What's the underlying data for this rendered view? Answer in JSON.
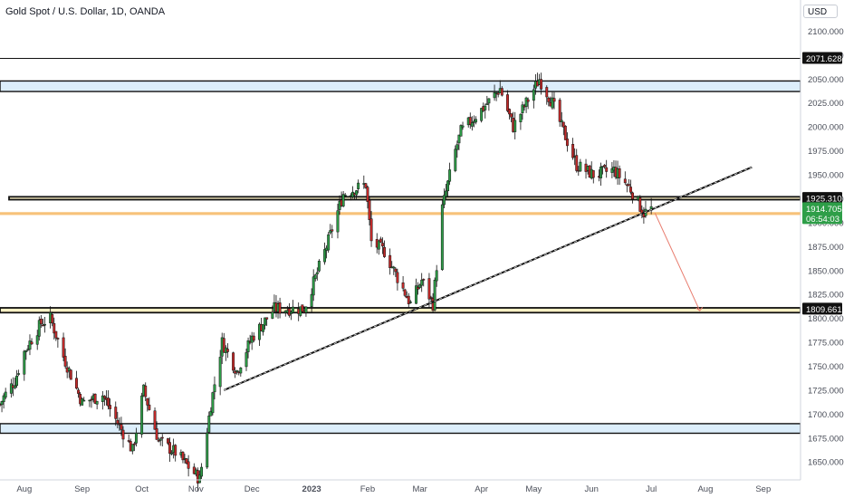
{
  "header": {
    "title": "Gold Spot / U.S. Dollar, 1D, OANDA",
    "currency": "USD"
  },
  "colors": {
    "up": "#2e9e48",
    "down": "#c52a2a",
    "zone_fill": "#dceefb",
    "orange_zone": "#f7c27a",
    "label_bg": "#111111",
    "current_price_bg": "#2e9e48",
    "projection_arrow": "#e87c6e",
    "axis_text": "#4a4e59"
  },
  "chart_data": {
    "type": "candlestick",
    "title": "Gold Spot / U.S. Dollar, 1D, OANDA",
    "xlabel": "",
    "ylabel": "",
    "ylim": [
      1636,
      2108
    ],
    "x_range": [
      "2022-07-19",
      "2023-09-21"
    ],
    "x_tick_labels": [
      {
        "label": "Aug",
        "date": "2022-08-01"
      },
      {
        "label": "Sep",
        "date": "2022-09-01"
      },
      {
        "label": "Oct",
        "date": "2022-10-03"
      },
      {
        "label": "Nov",
        "date": "2022-11-01"
      },
      {
        "label": "Dec",
        "date": "2022-12-01"
      },
      {
        "label": "2023",
        "date": "2023-01-02"
      },
      {
        "label": "Feb",
        "date": "2023-02-01"
      },
      {
        "label": "Mar",
        "date": "2023-03-01"
      },
      {
        "label": "Apr",
        "date": "2023-04-03"
      },
      {
        "label": "May",
        "date": "2023-05-01"
      },
      {
        "label": "Jun",
        "date": "2023-06-01"
      },
      {
        "label": "Jul",
        "date": "2023-07-03"
      },
      {
        "label": "Aug",
        "date": "2023-08-01"
      },
      {
        "label": "Sep",
        "date": "2023-09-01"
      }
    ],
    "y_ticks": [
      1650,
      1675,
      1700,
      1725,
      1750,
      1775,
      1800,
      1825,
      1850,
      1875,
      1900,
      1925,
      1950,
      1975,
      2000,
      2025,
      2050,
      2075,
      2100
    ],
    "y_tick_labels": [
      "1650.000",
      "1675.000",
      "1700.000",
      "1725.000",
      "1750.000",
      "1775.000",
      "1800.000",
      "1825.000",
      "1850.000",
      "1875.000",
      "1900.000",
      "1925.000",
      "1950.000",
      "1975.000",
      "2000.000",
      "2025.000",
      "2050.000",
      "2075.000",
      "2100.000"
    ],
    "price_labels": [
      {
        "value": 2071.628,
        "text": "2071.628",
        "style": "dark"
      },
      {
        "value": 1925.31,
        "text": "1925.310",
        "style": "dark"
      },
      {
        "value": 1914.705,
        "text": "1914.705",
        "style": "current"
      },
      {
        "value": 1809.661,
        "text": "1809.661",
        "style": "dark"
      }
    ],
    "countdown": "06:54:03",
    "horizontal_lines": [
      {
        "value": 2071.628
      }
    ],
    "zones": [
      {
        "from": 2037,
        "to": 2048,
        "style": "blue"
      },
      {
        "from": 1924,
        "to": 1927,
        "style": "yellow"
      },
      {
        "from": 1908,
        "to": 1911,
        "style": "orange"
      },
      {
        "from": 1806,
        "to": 1811,
        "style": "yellow"
      },
      {
        "from": 1680,
        "to": 1690,
        "style": "blue"
      }
    ],
    "trendline": {
      "start": {
        "date": "2022-11-16",
        "value": 1725
      },
      "end": {
        "date": "2023-08-26",
        "value": 1958
      }
    },
    "projection_arrow": {
      "start": {
        "date": "2023-07-05",
        "value": 1910
      },
      "end": {
        "date": "2023-07-29",
        "value": 1808
      }
    },
    "anchor_points": [
      [
        "2022-07-19",
        1710
      ],
      [
        "2022-07-21",
        1718
      ],
      [
        "2022-07-27",
        1735
      ],
      [
        "2022-08-01",
        1765
      ],
      [
        "2022-08-10",
        1795
      ],
      [
        "2022-08-15",
        1800
      ],
      [
        "2022-08-22",
        1760
      ],
      [
        "2022-09-01",
        1712
      ],
      [
        "2022-09-12",
        1720
      ],
      [
        "2022-09-28",
        1662
      ],
      [
        "2022-10-04",
        1725
      ],
      [
        "2022-10-12",
        1672
      ],
      [
        "2022-10-21",
        1660
      ],
      [
        "2022-11-03",
        1632
      ],
      [
        "2022-11-09",
        1710
      ],
      [
        "2022-11-15",
        1775
      ],
      [
        "2022-11-23",
        1745
      ],
      [
        "2022-12-01",
        1780
      ],
      [
        "2022-12-13",
        1810
      ],
      [
        "2022-12-29",
        1810
      ],
      [
        "2023-01-10",
        1875
      ],
      [
        "2023-01-19",
        1930
      ],
      [
        "2023-01-31",
        1940
      ],
      [
        "2023-02-03",
        1880
      ],
      [
        "2023-02-10",
        1870
      ],
      [
        "2023-02-24",
        1815
      ],
      [
        "2023-03-02",
        1840
      ],
      [
        "2023-03-08",
        1815
      ],
      [
        "2023-03-13",
        1915
      ],
      [
        "2023-03-20",
        1975
      ],
      [
        "2023-03-23",
        1995
      ],
      [
        "2023-04-04",
        2020
      ],
      [
        "2023-04-13",
        2040
      ],
      [
        "2023-04-20",
        2000
      ],
      [
        "2023-05-04",
        2050
      ],
      [
        "2023-05-11",
        2025
      ],
      [
        "2023-05-24",
        1960
      ],
      [
        "2023-06-02",
        1950
      ],
      [
        "2023-06-13",
        1955
      ],
      [
        "2023-06-22",
        1935
      ],
      [
        "2023-06-29",
        1910
      ],
      [
        "2023-07-03",
        1914.705
      ]
    ]
  }
}
